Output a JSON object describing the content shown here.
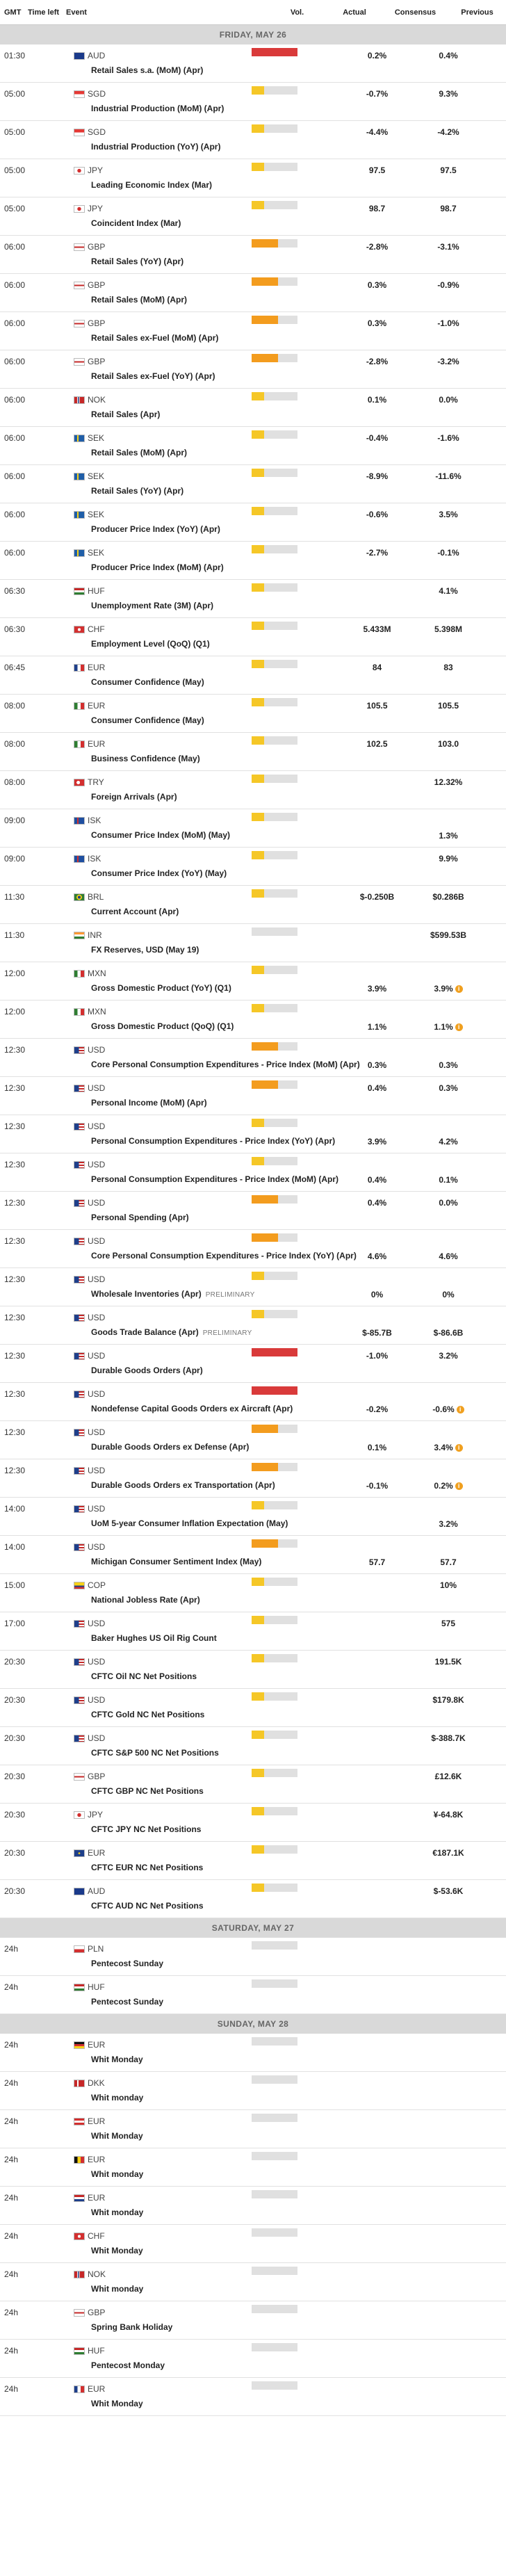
{
  "header": {
    "gmt": "GMT",
    "time_left": "Time left",
    "event": "Event",
    "vol": "Vol.",
    "actual": "Actual",
    "consensus": "Consensus",
    "previous": "Previous"
  },
  "colors": {
    "vol_red": "#d93a3a",
    "vol_orange": "#f39c1e",
    "vol_yellow": "#f5c727",
    "vol_empty": "#e0e0e0",
    "day_bg": "#d9d9d9"
  },
  "days": [
    {
      "label": "FRIDAY, MAY 26",
      "events": [
        {
          "time": "01:30",
          "currency": "AUD",
          "flag": "au",
          "name": "Retail Sales s.a. (MoM) (Apr)",
          "vol": 3,
          "consensus": "0.2%",
          "previous": "0.4%"
        },
        {
          "time": "05:00",
          "currency": "SGD",
          "flag": "sg",
          "name": "Industrial Production (MoM) (Apr)",
          "vol": 1,
          "consensus": "-0.7%",
          "previous": "9.3%"
        },
        {
          "time": "05:00",
          "currency": "SGD",
          "flag": "sg",
          "name": "Industrial Production (YoY) (Apr)",
          "vol": 1,
          "consensus": "-4.4%",
          "previous": "-4.2%"
        },
        {
          "time": "05:00",
          "currency": "JPY",
          "flag": "jp",
          "name": "Leading Economic Index (Mar)",
          "vol": 1,
          "consensus": "97.5",
          "previous": "97.5"
        },
        {
          "time": "05:00",
          "currency": "JPY",
          "flag": "jp",
          "name": "Coincident Index (Mar)",
          "vol": 1,
          "consensus": "98.7",
          "previous": "98.7"
        },
        {
          "time": "06:00",
          "currency": "GBP",
          "flag": "gb",
          "name": "Retail Sales (YoY) (Apr)",
          "vol": 2,
          "consensus": "-2.8%",
          "previous": "-3.1%"
        },
        {
          "time": "06:00",
          "currency": "GBP",
          "flag": "gb",
          "name": "Retail Sales (MoM) (Apr)",
          "vol": 2,
          "consensus": "0.3%",
          "previous": "-0.9%"
        },
        {
          "time": "06:00",
          "currency": "GBP",
          "flag": "gb",
          "name": "Retail Sales ex-Fuel (MoM) (Apr)",
          "vol": 2,
          "consensus": "0.3%",
          "previous": "-1.0%"
        },
        {
          "time": "06:00",
          "currency": "GBP",
          "flag": "gb",
          "name": "Retail Sales ex-Fuel (YoY) (Apr)",
          "vol": 2,
          "consensus": "-2.8%",
          "previous": "-3.2%"
        },
        {
          "time": "06:00",
          "currency": "NOK",
          "flag": "no",
          "name": "Retail Sales (Apr)",
          "vol": 1,
          "consensus": "0.1%",
          "previous": "0.0%"
        },
        {
          "time": "06:00",
          "currency": "SEK",
          "flag": "se",
          "name": "Retail Sales (MoM) (Apr)",
          "vol": 1,
          "consensus": "-0.4%",
          "previous": "-1.6%"
        },
        {
          "time": "06:00",
          "currency": "SEK",
          "flag": "se",
          "name": "Retail Sales (YoY) (Apr)",
          "vol": 1,
          "consensus": "-8.9%",
          "previous": "-11.6%"
        },
        {
          "time": "06:00",
          "currency": "SEK",
          "flag": "se",
          "name": "Producer Price Index (YoY) (Apr)",
          "vol": 1,
          "consensus": "-0.6%",
          "previous": "3.5%"
        },
        {
          "time": "06:00",
          "currency": "SEK",
          "flag": "se",
          "name": "Producer Price Index (MoM) (Apr)",
          "vol": 1,
          "consensus": "-2.7%",
          "previous": "-0.1%"
        },
        {
          "time": "06:30",
          "currency": "HUF",
          "flag": "hu",
          "name": "Unemployment Rate (3M) (Apr)",
          "vol": 1,
          "consensus": "",
          "previous": "4.1%"
        },
        {
          "time": "06:30",
          "currency": "CHF",
          "flag": "ch",
          "name": "Employment Level (QoQ) (Q1)",
          "vol": 1,
          "consensus": "5.433M",
          "previous": "5.398M"
        },
        {
          "time": "06:45",
          "currency": "EUR",
          "flag": "fr",
          "name": "Consumer Confidence (May)",
          "vol": 1,
          "consensus": "84",
          "previous": "83"
        },
        {
          "time": "08:00",
          "currency": "EUR",
          "flag": "it",
          "name": "Consumer Confidence (May)",
          "vol": 1,
          "consensus": "105.5",
          "previous": "105.5"
        },
        {
          "time": "08:00",
          "currency": "EUR",
          "flag": "it",
          "name": "Business Confidence (May)",
          "vol": 1,
          "consensus": "102.5",
          "previous": "103.0"
        },
        {
          "time": "08:00",
          "currency": "TRY",
          "flag": "tr",
          "name": "Foreign Arrivals (Apr)",
          "vol": 1,
          "consensus": "",
          "previous": "12.32%"
        },
        {
          "time": "09:00",
          "currency": "ISK",
          "flag": "is",
          "name": "Consumer Price Index (MoM) (May)",
          "vol": 1,
          "consensus": "",
          "previous": "1.3%",
          "bottom": true
        },
        {
          "time": "09:00",
          "currency": "ISK",
          "flag": "is",
          "name": "Consumer Price Index (YoY) (May)",
          "vol": 1,
          "consensus": "",
          "previous": "9.9%"
        },
        {
          "time": "11:30",
          "currency": "BRL",
          "flag": "br",
          "name": "Current Account (Apr)",
          "vol": 1,
          "consensus": "$-0.250B",
          "previous": "$0.286B"
        },
        {
          "time": "11:30",
          "currency": "INR",
          "flag": "in",
          "name": "FX Reserves, USD (May 19)",
          "vol": 0,
          "consensus": "",
          "previous": "$599.53B"
        },
        {
          "time": "12:00",
          "currency": "MXN",
          "flag": "mx",
          "name": "Gross Domestic Product (YoY) (Q1)",
          "vol": 1,
          "consensus": "3.9%",
          "previous": "3.9%",
          "info": true,
          "bottom": true
        },
        {
          "time": "12:00",
          "currency": "MXN",
          "flag": "mx",
          "name": "Gross Domestic Product (QoQ) (Q1)",
          "vol": 1,
          "consensus": "1.1%",
          "previous": "1.1%",
          "info": true,
          "bottom": true
        },
        {
          "time": "12:30",
          "currency": "USD",
          "flag": "us",
          "name": "Core Personal Consumption Expenditures - Price Index (MoM) (Apr)",
          "vol": 2,
          "consensus": "0.3%",
          "previous": "0.3%",
          "bottom": true
        },
        {
          "time": "12:30",
          "currency": "USD",
          "flag": "us",
          "name": "Personal Income (MoM) (Apr)",
          "vol": 2,
          "consensus": "0.4%",
          "previous": "0.3%"
        },
        {
          "time": "12:30",
          "currency": "USD",
          "flag": "us",
          "name": "Personal Consumption Expenditures - Price Index (YoY) (Apr)",
          "vol": 1,
          "consensus": "3.9%",
          "previous": "4.2%",
          "bottom": true
        },
        {
          "time": "12:30",
          "currency": "USD",
          "flag": "us",
          "name": "Personal Consumption Expenditures - Price Index (MoM) (Apr)",
          "vol": 1,
          "consensus": "0.4%",
          "previous": "0.1%",
          "bottom": true
        },
        {
          "time": "12:30",
          "currency": "USD",
          "flag": "us",
          "name": "Personal Spending (Apr)",
          "vol": 2,
          "consensus": "0.4%",
          "previous": "0.0%"
        },
        {
          "time": "12:30",
          "currency": "USD",
          "flag": "us",
          "name": "Core Personal Consumption Expenditures - Price Index (YoY) (Apr)",
          "vol": 2,
          "consensus": "4.6%",
          "previous": "4.6%",
          "bottom": true
        },
        {
          "time": "12:30",
          "currency": "USD",
          "flag": "us",
          "name": "Wholesale Inventories (Apr)",
          "badge": "PRELIMINARY",
          "vol": 1,
          "consensus": "0%",
          "previous": "0%",
          "bottom": true
        },
        {
          "time": "12:30",
          "currency": "USD",
          "flag": "us",
          "name": "Goods Trade Balance (Apr)",
          "badge": "PRELIMINARY",
          "vol": 1,
          "consensus": "$-85.7B",
          "previous": "$-86.6B",
          "bottom": true
        },
        {
          "time": "12:30",
          "currency": "USD",
          "flag": "us",
          "name": "Durable Goods Orders (Apr)",
          "vol": 3,
          "consensus": "-1.0%",
          "previous": "3.2%"
        },
        {
          "time": "12:30",
          "currency": "USD",
          "flag": "us",
          "name": "Nondefense Capital Goods Orders ex Aircraft (Apr)",
          "vol": 3,
          "consensus": "-0.2%",
          "previous": "-0.6%",
          "info": true,
          "bottom": true
        },
        {
          "time": "12:30",
          "currency": "USD",
          "flag": "us",
          "name": "Durable Goods Orders ex Defense (Apr)",
          "vol": 2,
          "consensus": "0.1%",
          "previous": "3.4%",
          "info": true,
          "bottom": true
        },
        {
          "time": "12:30",
          "currency": "USD",
          "flag": "us",
          "name": "Durable Goods Orders ex Transportation (Apr)",
          "vol": 2,
          "consensus": "-0.1%",
          "previous": "0.2%",
          "info": true,
          "bottom": true
        },
        {
          "time": "14:00",
          "currency": "USD",
          "flag": "us",
          "name": "UoM 5-year Consumer Inflation Expectation (May)",
          "vol": 1,
          "consensus": "",
          "previous": "3.2%",
          "bottom": true
        },
        {
          "time": "14:00",
          "currency": "USD",
          "flag": "us",
          "name": "Michigan Consumer Sentiment Index (May)",
          "vol": 2,
          "consensus": "57.7",
          "previous": "57.7",
          "bottom": true
        },
        {
          "time": "15:00",
          "currency": "COP",
          "flag": "co",
          "name": "National Jobless Rate (Apr)",
          "vol": 1,
          "consensus": "",
          "previous": "10%"
        },
        {
          "time": "17:00",
          "currency": "USD",
          "flag": "us",
          "name": "Baker Hughes US Oil Rig Count",
          "vol": 1,
          "consensus": "",
          "previous": "575"
        },
        {
          "time": "20:30",
          "currency": "USD",
          "flag": "us",
          "name": "CFTC Oil NC Net Positions",
          "vol": 1,
          "consensus": "",
          "previous": "191.5K"
        },
        {
          "time": "20:30",
          "currency": "USD",
          "flag": "us",
          "name": "CFTC Gold NC Net Positions",
          "vol": 1,
          "consensus": "",
          "previous": "$179.8K"
        },
        {
          "time": "20:30",
          "currency": "USD",
          "flag": "us",
          "name": "CFTC S&P 500 NC Net Positions",
          "vol": 1,
          "consensus": "",
          "previous": "$-388.7K"
        },
        {
          "time": "20:30",
          "currency": "GBP",
          "flag": "gb",
          "name": "CFTC GBP NC Net Positions",
          "vol": 1,
          "consensus": "",
          "previous": "£12.6K"
        },
        {
          "time": "20:30",
          "currency": "JPY",
          "flag": "jp",
          "name": "CFTC JPY NC Net Positions",
          "vol": 1,
          "consensus": "",
          "previous": "¥-64.8K"
        },
        {
          "time": "20:30",
          "currency": "EUR",
          "flag": "eu",
          "name": "CFTC EUR NC Net Positions",
          "vol": 1,
          "consensus": "",
          "previous": "€187.1K"
        },
        {
          "time": "20:30",
          "currency": "AUD",
          "flag": "au",
          "name": "CFTC AUD NC Net Positions",
          "vol": 1,
          "consensus": "",
          "previous": "$-53.6K"
        }
      ]
    },
    {
      "label": "SATURDAY, MAY 27",
      "events": [
        {
          "time": "24h",
          "currency": "PLN",
          "flag": "pl",
          "name": "Pentecost Sunday",
          "vol": 0,
          "consensus": "",
          "previous": ""
        },
        {
          "time": "24h",
          "currency": "HUF",
          "flag": "hu",
          "name": "Pentecost Sunday",
          "vol": 0,
          "consensus": "",
          "previous": ""
        }
      ]
    },
    {
      "label": "SUNDAY, MAY 28",
      "events": [
        {
          "time": "24h",
          "currency": "EUR",
          "flag": "de",
          "name": "Whit Monday",
          "vol": 0,
          "consensus": "",
          "previous": ""
        },
        {
          "time": "24h",
          "currency": "DKK",
          "flag": "dk",
          "name": "Whit monday",
          "vol": 0,
          "consensus": "",
          "previous": ""
        },
        {
          "time": "24h",
          "currency": "EUR",
          "flag": "at",
          "name": "Whit Monday",
          "vol": 0,
          "consensus": "",
          "previous": ""
        },
        {
          "time": "24h",
          "currency": "EUR",
          "flag": "be",
          "name": "Whit monday",
          "vol": 0,
          "consensus": "",
          "previous": ""
        },
        {
          "time": "24h",
          "currency": "EUR",
          "flag": "nl",
          "name": "Whit monday",
          "vol": 0,
          "consensus": "",
          "previous": ""
        },
        {
          "time": "24h",
          "currency": "CHF",
          "flag": "ch",
          "name": "Whit Monday",
          "vol": 0,
          "consensus": "",
          "previous": ""
        },
        {
          "time": "24h",
          "currency": "NOK",
          "flag": "no",
          "name": "Whit monday",
          "vol": 0,
          "consensus": "",
          "previous": ""
        },
        {
          "time": "24h",
          "currency": "GBP",
          "flag": "gb",
          "name": "Spring Bank Holiday",
          "vol": 0,
          "consensus": "",
          "previous": ""
        },
        {
          "time": "24h",
          "currency": "HUF",
          "flag": "hu",
          "name": "Pentecost Monday",
          "vol": 0,
          "consensus": "",
          "previous": ""
        },
        {
          "time": "24h",
          "currency": "EUR",
          "flag": "fr",
          "name": "Whit Monday",
          "vol": 0,
          "consensus": "",
          "previous": ""
        }
      ]
    }
  ]
}
